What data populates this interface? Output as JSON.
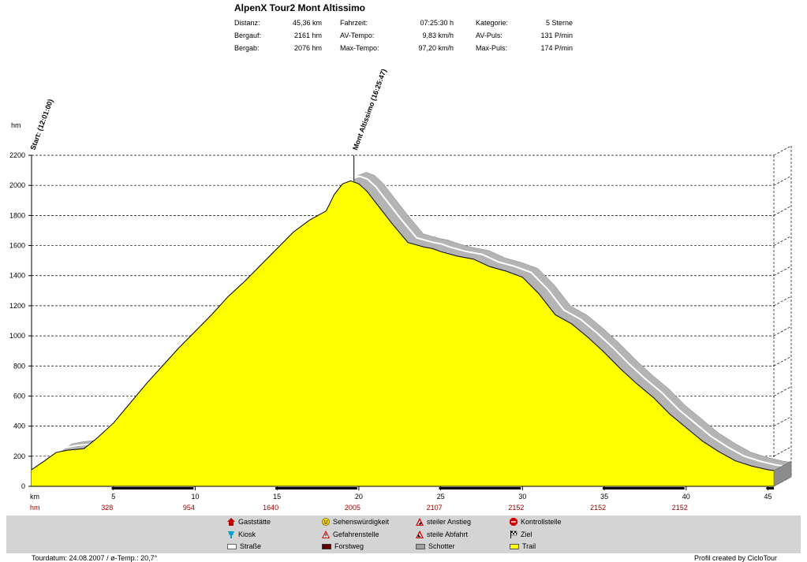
{
  "title": "AlpenX Tour2 Mont Altissimo",
  "stats": [
    [
      {
        "label": "Distanz:",
        "value": "45,36 km"
      },
      {
        "label": "Fahrzeit:",
        "value": "07:25:30 h"
      },
      {
        "label": "Kategorie:",
        "value": "5 Sterne"
      }
    ],
    [
      {
        "label": "Bergauf:",
        "value": "2161 hm"
      },
      {
        "label": "AV-Tempo:",
        "value": "9,83 km/h"
      },
      {
        "label": "AV-Puls:",
        "value": "131 P/min"
      }
    ],
    [
      {
        "label": "Bergab:",
        "value": "2076 hm"
      },
      {
        "label": "Max-Tempo:",
        "value": "97,20 km/h"
      },
      {
        "label": "Max-Puls:",
        "value": "174 P/min"
      }
    ]
  ],
  "chart_data": {
    "type": "area",
    "xlabel": "km",
    "ylabel": "hm",
    "xlim": [
      0,
      45.36
    ],
    "ylim": [
      0,
      2200
    ],
    "yticks": [
      0,
      200,
      400,
      600,
      800,
      1000,
      1200,
      1400,
      1600,
      1800,
      2000,
      2200
    ],
    "xticks": [
      5,
      10,
      15,
      20,
      25,
      30,
      35,
      40,
      45
    ],
    "hm_labels": [
      {
        "km": 5,
        "text": "328"
      },
      {
        "km": 10,
        "text": "954"
      },
      {
        "km": 15,
        "text": "1640"
      },
      {
        "km": 20,
        "text": "2005"
      },
      {
        "km": 25,
        "text": "2107"
      },
      {
        "km": 30,
        "text": "2152"
      },
      {
        "km": 35,
        "text": "2152"
      },
      {
        "km": 40,
        "text": "2152"
      }
    ],
    "series": [
      {
        "x": [
          0,
          0.8,
          1.5,
          2.2,
          3.2,
          4,
          5,
          6,
          7,
          8,
          9,
          10,
          11,
          12,
          13,
          14,
          15,
          16,
          17,
          17.5,
          18,
          18.5,
          19,
          19.5,
          20,
          20.5,
          21,
          22,
          23,
          24,
          24.5,
          25,
          26,
          27,
          28,
          29,
          30,
          31,
          32,
          33,
          34,
          35,
          36,
          37,
          38,
          39,
          40,
          41,
          42,
          43,
          44,
          45,
          45.36
        ],
        "y": [
          110,
          170,
          225,
          240,
          250,
          320,
          420,
          550,
          680,
          800,
          920,
          1030,
          1140,
          1260,
          1360,
          1470,
          1580,
          1690,
          1770,
          1800,
          1830,
          1940,
          2010,
          2030,
          2010,
          1960,
          1890,
          1750,
          1620,
          1590,
          1580,
          1560,
          1530,
          1510,
          1460,
          1430,
          1390,
          1280,
          1140,
          1080,
          990,
          890,
          780,
          680,
          590,
          480,
          390,
          300,
          230,
          170,
          135,
          110,
          105
        ]
      }
    ],
    "markers": [
      {
        "km": 0,
        "text": "Start: (12:01:00)"
      },
      {
        "km": 19.7,
        "text": "Mont Altissimo (16:25:47)"
      }
    ],
    "road_km": [
      [
        4.9,
        9.9
      ],
      [
        14.9,
        19.9
      ],
      [
        24.9,
        29.9
      ],
      [
        34.9,
        39.9
      ],
      [
        44.9,
        45.36
      ]
    ],
    "fill_color": "#ffff00",
    "shadow_color": "#b4b4b4"
  },
  "legend": [
    {
      "icon": "house-icon",
      "label": "Gaststätte"
    },
    {
      "icon": "smiley-icon",
      "label": "Sehenswürdigkeit"
    },
    {
      "icon": "climb-warning-icon",
      "label": "steiler Anstieg"
    },
    {
      "icon": "stop-icon",
      "label": "Kontrollstelle"
    },
    {
      "icon": "kiosk-icon",
      "label": "Kiosk"
    },
    {
      "icon": "danger-icon",
      "label": "Gefahrenstelle"
    },
    {
      "icon": "descent-warning-icon",
      "label": "steile Abfahrt"
    },
    {
      "icon": "finish-flag-icon",
      "label": "Ziel"
    },
    {
      "icon": "road-swatch",
      "label": "Straße"
    },
    {
      "icon": "forest-road-swatch",
      "label": "Forstweg"
    },
    {
      "icon": "gravel-swatch",
      "label": "Schotter"
    },
    {
      "icon": "trail-swatch",
      "label": "Trail"
    }
  ],
  "footer": {
    "left": "Tourdatum: 24.08.2007  /  ø-Temp.: 20,7°",
    "right": "Profil created by CicloTour"
  }
}
